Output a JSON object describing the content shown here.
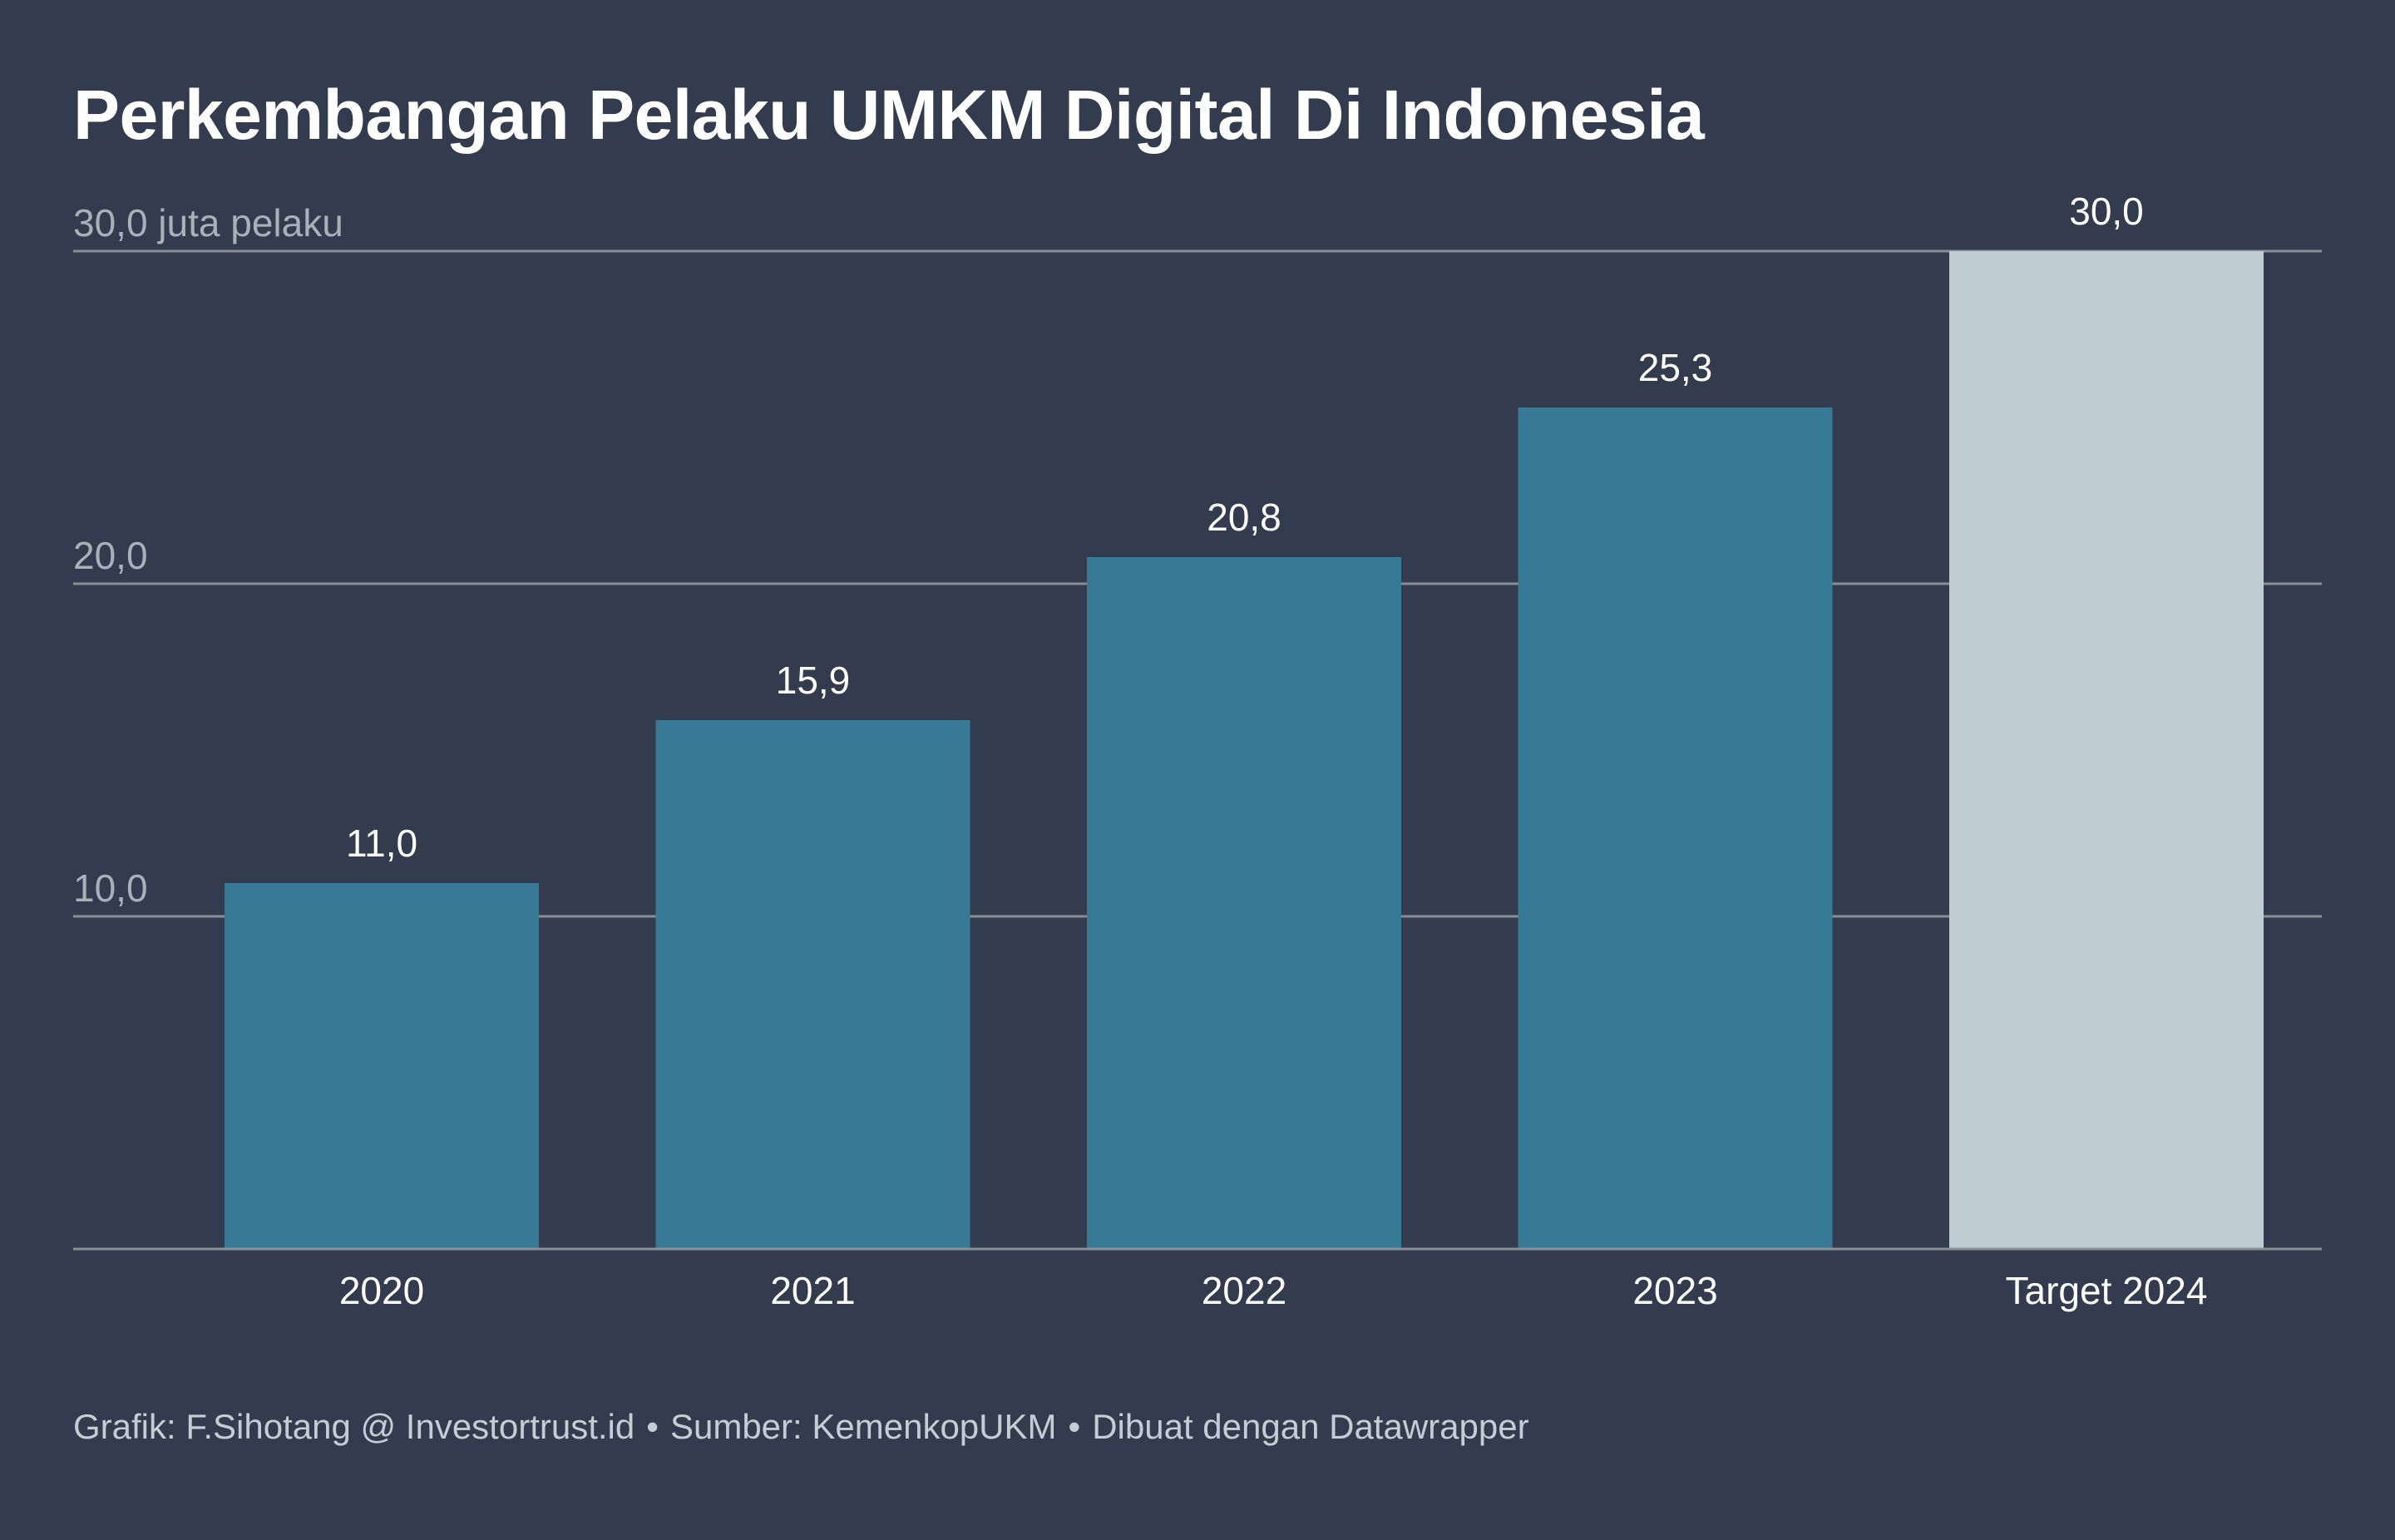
{
  "title": "Perkembangan Pelaku UMKM Digital Di Indonesia",
  "footer": {
    "credit": "Grafik: F.Sihotang @ Investortrust.id",
    "separator": "•",
    "source": "Sumber: KemenkopUKM",
    "tool": "Dibuat dengan Datawrapper"
  },
  "colors": {
    "background": "#323c4e",
    "bar_actual": "#387a96",
    "bar_target": "#bfccd1",
    "gridline": "#8a8f96",
    "axis_label": "#a9b0b8",
    "value_label": "#ffffff"
  },
  "chart_data": {
    "type": "bar",
    "categories": [
      "2020",
      "2021",
      "2022",
      "2023",
      "Target 2024"
    ],
    "values": [
      11.0,
      15.9,
      20.8,
      25.3,
      30.0
    ],
    "value_labels": [
      "11,0",
      "15,9",
      "20,8",
      "25,3",
      "30,0"
    ],
    "bar_kinds": [
      "actual",
      "actual",
      "actual",
      "actual",
      "target"
    ],
    "ylim": [
      0,
      30
    ],
    "yticks": [
      {
        "value": 10,
        "label": "10,0"
      },
      {
        "value": 20,
        "label": "20,0"
      },
      {
        "value": 30,
        "label": "30,0 juta pelaku"
      }
    ],
    "grid": true,
    "xlabel": "",
    "ylabel": ""
  }
}
